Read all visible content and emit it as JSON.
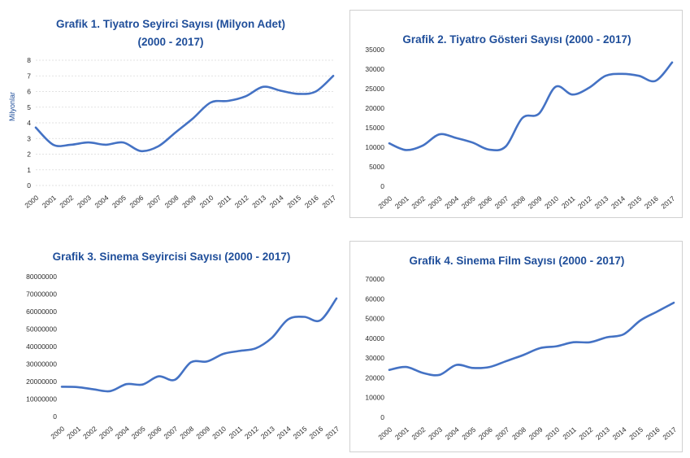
{
  "chart_data": [
    {
      "type": "line",
      "title": "Grafik 1. Tiyatro Seyirci Sayısı (Milyon Adet)",
      "subtitle": "(2000 - 2017)",
      "ylabel": "Milyonlar",
      "xlabel": "",
      "ylim": [
        0,
        8
      ],
      "yticks": [
        0,
        1,
        2,
        3,
        4,
        5,
        6,
        7,
        8
      ],
      "ytick_labels": [
        "0",
        "1",
        "2",
        "3",
        "4",
        "5",
        "6",
        "7",
        "8"
      ],
      "grid": true,
      "categories": [
        "2000",
        "2001",
        "2002",
        "2003",
        "2004",
        "2005",
        "2006",
        "2007",
        "2008",
        "2009",
        "2010",
        "2011",
        "2012",
        "2013",
        "2014",
        "2015",
        "2016",
        "2017"
      ],
      "series": [
        {
          "values": [
            3.7,
            2.6,
            2.6,
            2.75,
            2.6,
            2.75,
            2.2,
            2.5,
            3.4,
            4.3,
            5.3,
            5.4,
            5.7,
            6.3,
            6.05,
            5.85,
            6.0,
            7.0
          ]
        }
      ],
      "color": "#4472c4"
    },
    {
      "type": "line",
      "title": "Grafik 2. Tiyatro Gösteri Sayısı  (2000 - 2017)",
      "ylabel": "",
      "xlabel": "",
      "ylim": [
        0,
        35000
      ],
      "yticks": [
        0,
        5000,
        10000,
        15000,
        20000,
        25000,
        30000,
        35000
      ],
      "ytick_labels": [
        "0",
        "5000",
        "10000",
        "15000",
        "20000",
        "25000",
        "30000",
        "35000"
      ],
      "grid": false,
      "categories": [
        "2000",
        "2001",
        "2002",
        "2003",
        "2004",
        "2005",
        "2006",
        "2007",
        "2008",
        "2009",
        "2010",
        "2011",
        "2012",
        "2013",
        "2014",
        "2015",
        "2016",
        "2017"
      ],
      "series": [
        {
          "values": [
            11000,
            9300,
            10400,
            13300,
            12400,
            11200,
            9400,
            10200,
            17500,
            18600,
            25500,
            23500,
            25200,
            28300,
            28800,
            28300,
            27000,
            31700
          ]
        }
      ],
      "color": "#4472c4"
    },
    {
      "type": "line",
      "title": "Grafik 3. Sinema Seyircisi Sayısı  (2000 - 2017)",
      "ylabel": "",
      "xlabel": "",
      "ylim": [
        0,
        80000000
      ],
      "yticks": [
        0,
        10000000,
        20000000,
        30000000,
        40000000,
        50000000,
        60000000,
        70000000,
        80000000
      ],
      "ytick_labels": [
        "0",
        "10000000",
        "20000000",
        "30000000",
        "40000000",
        "50000000",
        "60000000",
        "70000000",
        "80000000"
      ],
      "grid": false,
      "categories": [
        "2000",
        "2001",
        "2002",
        "2003",
        "2004",
        "2005",
        "2006",
        "2007",
        "2008",
        "2009",
        "2010",
        "2011",
        "2012",
        "2013",
        "2014",
        "2015",
        "2016",
        "2017"
      ],
      "series": [
        {
          "values": [
            17000000,
            16800000,
            15500000,
            14500000,
            18500000,
            18300000,
            23000000,
            21000000,
            31000000,
            31500000,
            35800000,
            37500000,
            39000000,
            45000000,
            55500000,
            57000000,
            55000000,
            67500000
          ]
        }
      ],
      "color": "#4472c4"
    },
    {
      "type": "line",
      "title": "Grafik 4. Sinema Film Sayısı  (2000 - 2017)",
      "ylabel": "",
      "xlabel": "",
      "ylim": [
        0,
        70000
      ],
      "yticks": [
        0,
        10000,
        20000,
        30000,
        40000,
        50000,
        60000,
        70000
      ],
      "ytick_labels": [
        "0",
        "10000",
        "20000",
        "30000",
        "40000",
        "50000",
        "60000",
        "70000"
      ],
      "grid": false,
      "categories": [
        "2000",
        "2001",
        "2002",
        "2003",
        "2004",
        "2005",
        "2006",
        "2007",
        "2008",
        "2009",
        "2010",
        "2011",
        "2012",
        "2013",
        "2014",
        "2015",
        "2016",
        "2017"
      ],
      "series": [
        {
          "values": [
            24000,
            25500,
            22500,
            21500,
            26500,
            25000,
            25500,
            28500,
            31500,
            35000,
            36000,
            38000,
            38000,
            40500,
            42000,
            49000,
            53500,
            58000
          ]
        }
      ],
      "color": "#4472c4"
    }
  ]
}
